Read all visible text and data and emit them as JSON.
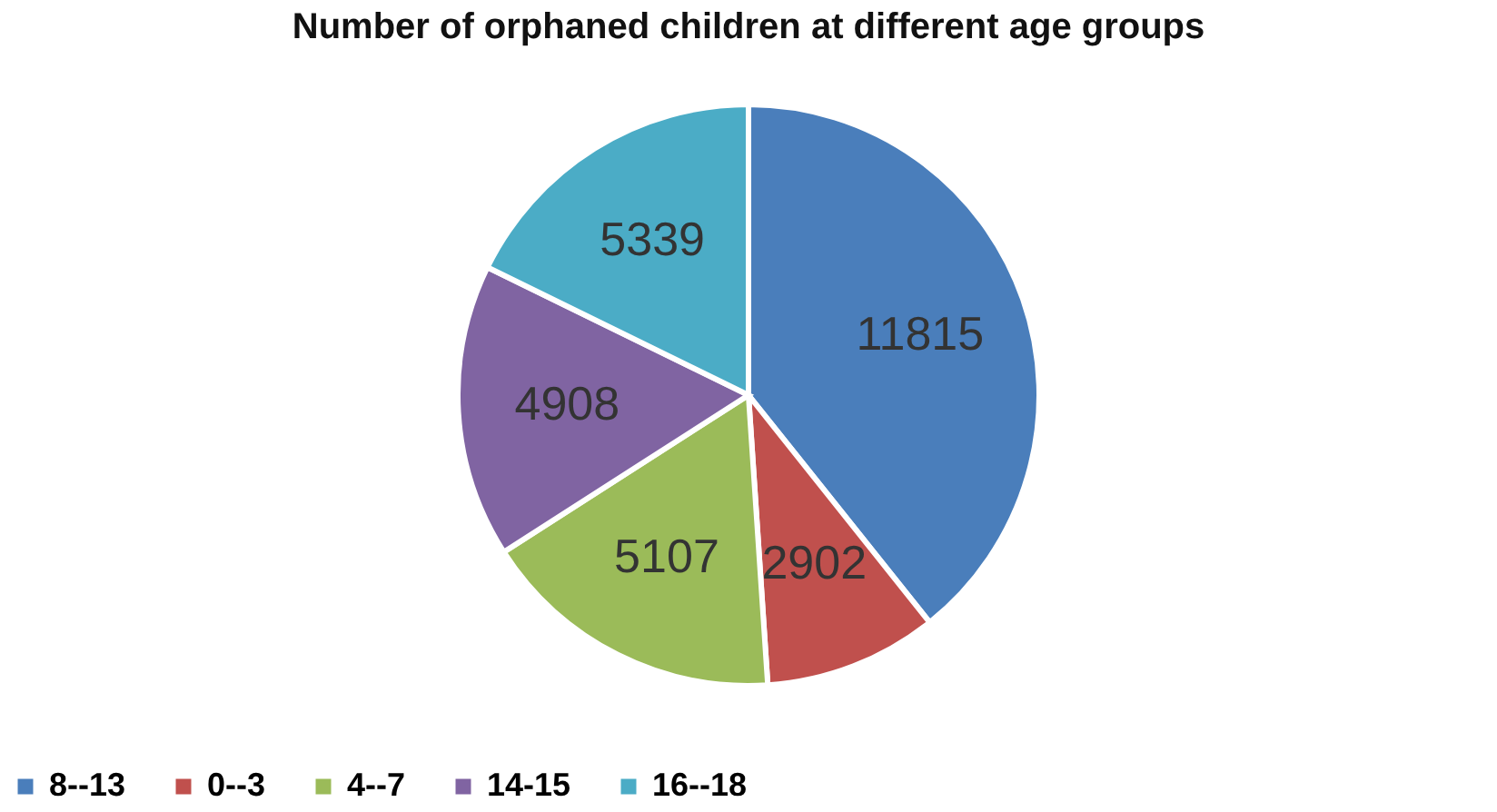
{
  "chart_data": {
    "type": "pie",
    "title": "Number of orphaned children at different age groups",
    "categories": [
      "8--13",
      "0--3",
      "4--7",
      "14-15",
      "16--18"
    ],
    "values": [
      11815,
      2902,
      5107,
      4908,
      5339
    ],
    "colors": [
      "#4a7ebb",
      "#c0504d",
      "#9bbb59",
      "#8064a2",
      "#4bacc6"
    ],
    "data_labels": true,
    "legend": "bottom"
  }
}
